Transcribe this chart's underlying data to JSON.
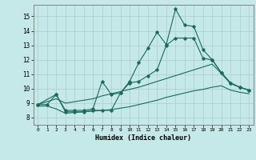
{
  "xlabel": "Humidex (Indice chaleur)",
  "background_color": "#c5e8e8",
  "grid_color": "#b0cccc",
  "line_color": "#1a6b5a",
  "xlim": [
    -0.5,
    23.5
  ],
  "ylim": [
    7.5,
    15.8
  ],
  "xticks": [
    0,
    1,
    2,
    3,
    4,
    5,
    6,
    7,
    8,
    9,
    10,
    11,
    12,
    13,
    14,
    15,
    16,
    17,
    18,
    19,
    20,
    21,
    22,
    23
  ],
  "yticks": [
    8,
    9,
    10,
    11,
    12,
    13,
    14,
    15
  ],
  "line1_x": [
    0,
    1,
    2,
    3,
    4,
    5,
    6,
    7,
    8,
    9,
    10,
    11,
    12,
    13,
    14,
    15,
    16,
    17,
    18,
    19,
    20,
    21,
    22,
    23
  ],
  "line1_y": [
    8.9,
    8.9,
    9.6,
    8.4,
    8.4,
    8.4,
    8.5,
    8.5,
    8.5,
    9.7,
    10.5,
    11.8,
    12.8,
    13.9,
    13.05,
    15.5,
    14.4,
    14.3,
    12.7,
    12.0,
    11.1,
    10.4,
    10.1,
    9.9
  ],
  "line2_x": [
    0,
    2,
    3,
    4,
    5,
    6,
    7,
    8,
    9,
    10,
    11,
    12,
    13,
    14,
    15,
    16,
    17,
    18,
    19,
    20,
    21,
    22,
    23
  ],
  "line2_y": [
    8.9,
    9.6,
    8.5,
    8.5,
    8.5,
    8.6,
    10.5,
    9.6,
    9.7,
    10.4,
    10.5,
    10.9,
    11.3,
    13.0,
    13.5,
    13.5,
    13.5,
    12.1,
    12.0,
    11.1,
    10.4,
    10.1,
    9.9
  ],
  "line3_x": [
    0,
    1,
    2,
    3,
    4,
    5,
    6,
    7,
    8,
    9,
    10,
    11,
    12,
    13,
    14,
    15,
    16,
    17,
    18,
    19,
    20,
    21,
    22,
    23
  ],
  "line3_y": [
    8.9,
    9.1,
    9.3,
    9.0,
    9.1,
    9.2,
    9.3,
    9.5,
    9.65,
    9.8,
    9.95,
    10.1,
    10.3,
    10.5,
    10.7,
    10.9,
    11.1,
    11.3,
    11.5,
    11.7,
    11.05,
    10.35,
    10.1,
    9.9
  ],
  "line4_x": [
    0,
    1,
    2,
    3,
    4,
    5,
    6,
    7,
    8,
    9,
    10,
    11,
    12,
    13,
    14,
    15,
    16,
    17,
    18,
    19,
    20,
    21,
    22,
    23
  ],
  "line4_y": [
    8.8,
    8.8,
    8.6,
    8.3,
    8.35,
    8.4,
    8.45,
    8.5,
    8.55,
    8.65,
    8.75,
    8.9,
    9.05,
    9.2,
    9.4,
    9.55,
    9.7,
    9.85,
    9.95,
    10.1,
    10.2,
    9.9,
    9.75,
    9.65
  ]
}
